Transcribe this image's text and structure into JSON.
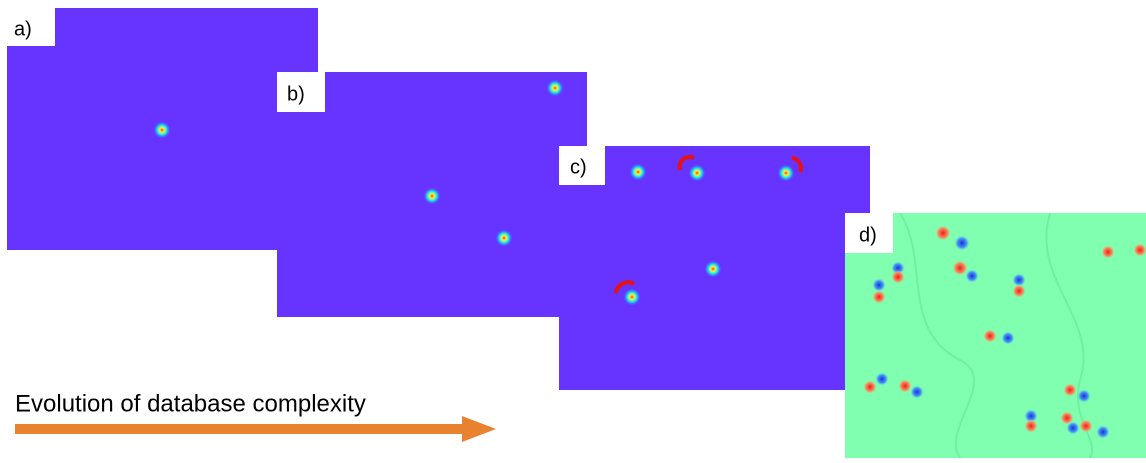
{
  "panels": [
    {
      "label": "a)"
    },
    {
      "label": "b)"
    },
    {
      "label": "c)"
    },
    {
      "label": "d)"
    }
  ],
  "caption": "Evolution of database complexity"
}
